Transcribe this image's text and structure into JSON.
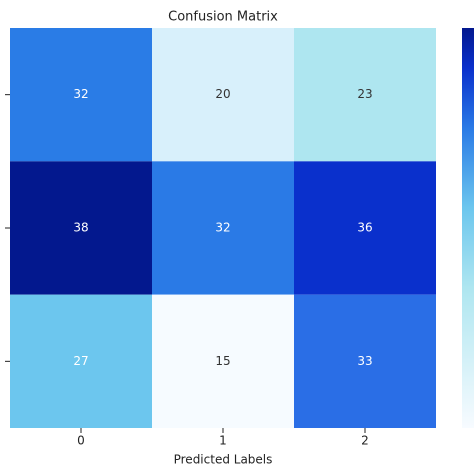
{
  "chart_data": {
    "type": "heatmap",
    "title": "Confusion Matrix",
    "x_label": "Predicted Labels",
    "categories": [
      "0",
      "1",
      "2"
    ],
    "values": [
      [
        32,
        20,
        23
      ],
      [
        38,
        32,
        36
      ],
      [
        27,
        15,
        33
      ]
    ],
    "colors": [
      [
        "#2a7ce6",
        "#d8f0fb",
        "#aee6f0"
      ],
      [
        "#03188e",
        "#2a7ae6",
        "#0a30cc"
      ],
      [
        "#6cc6ee",
        "#f6fbff",
        "#2a6ee6"
      ]
    ]
  }
}
